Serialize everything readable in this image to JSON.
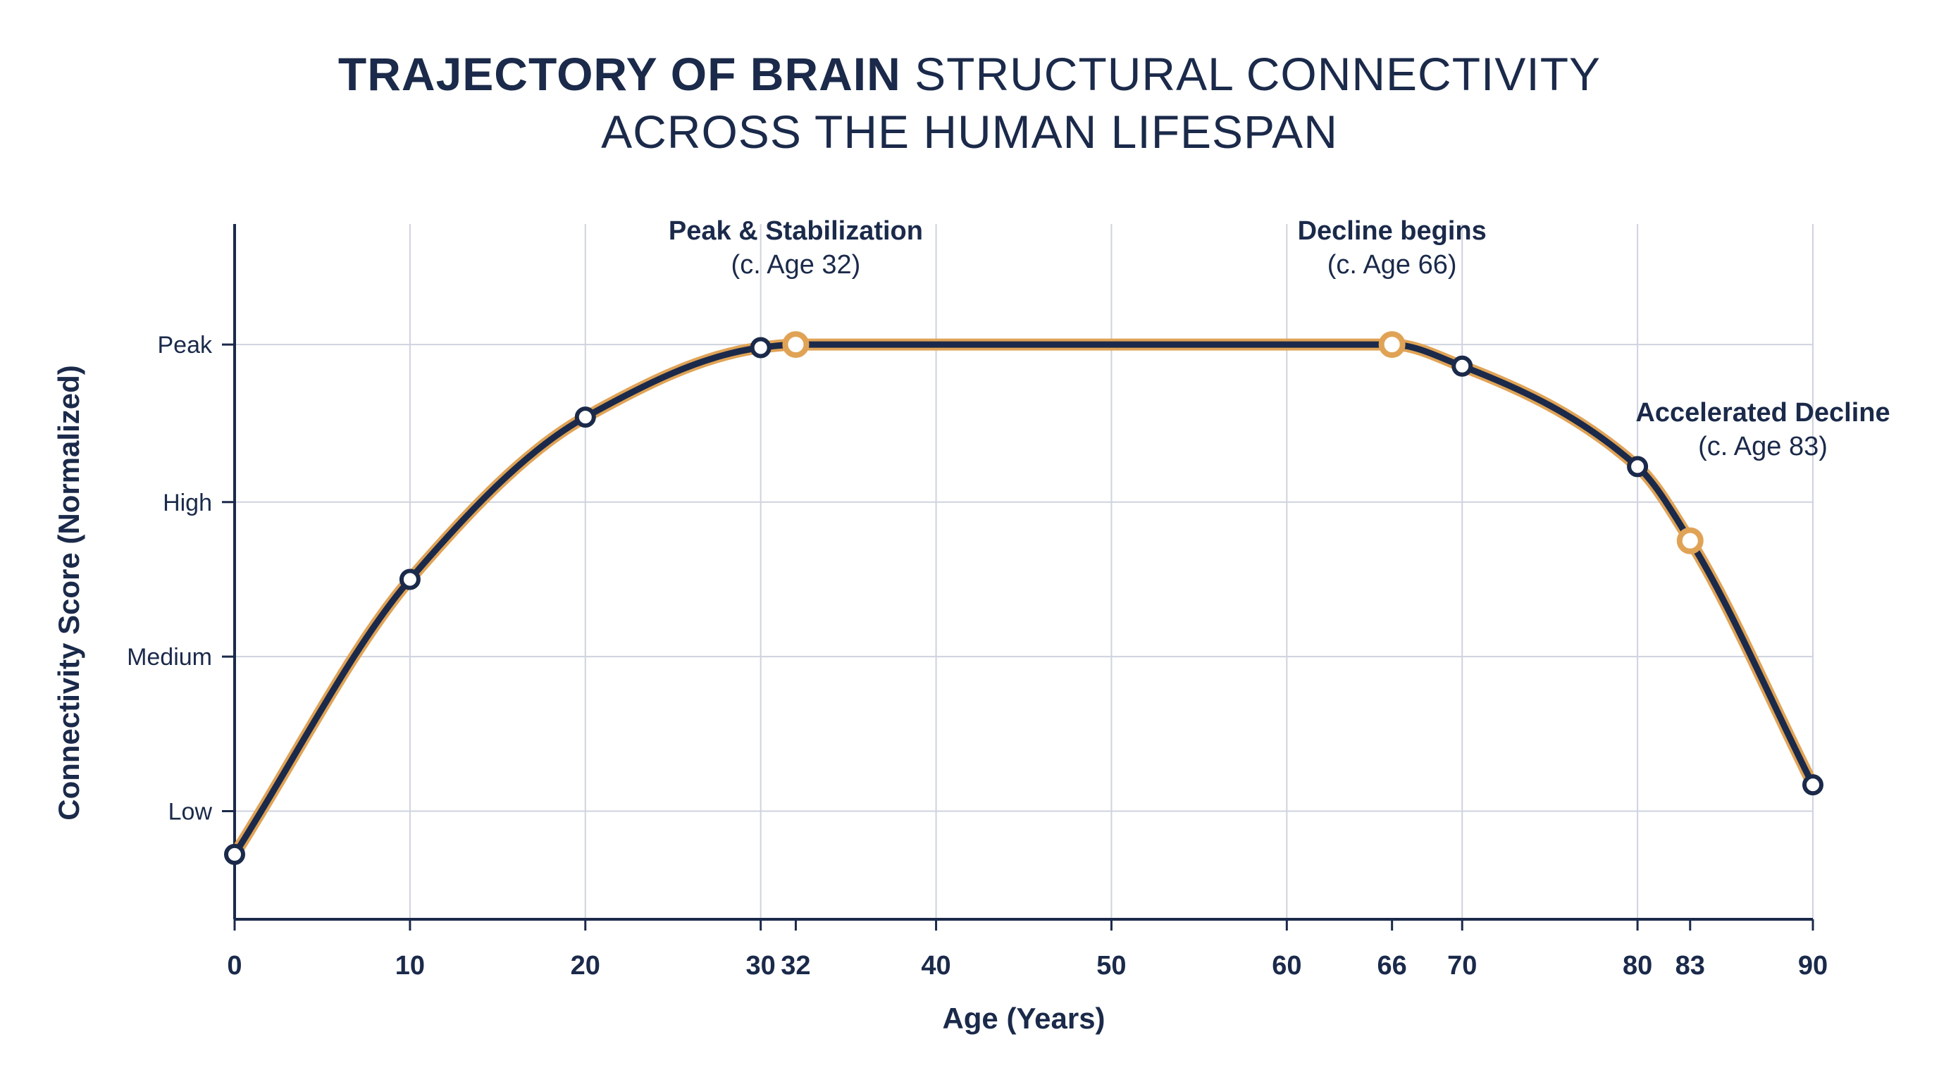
{
  "chart_data": {
    "type": "line",
    "title": {
      "line1_bold": "TRAJECTORY OF BRAIN",
      "line1_rest": " STRUCTURAL CONNECTIVITY",
      "line2": "ACROSS THE HUMAN LIFESPAN"
    },
    "xlabel": "Age (Years)",
    "ylabel": "Connectivity Score (Normalized)",
    "xlim": [
      0,
      90
    ],
    "ylim": [
      0,
      4.5
    ],
    "x_ticks": [
      0,
      10,
      20,
      30,
      32,
      40,
      50,
      60,
      66,
      70,
      80,
      83,
      90
    ],
    "x_grid": [
      0,
      10,
      20,
      30,
      40,
      50,
      60,
      70,
      80,
      90
    ],
    "y_ticks": [
      {
        "value": 0.7,
        "label": "Low"
      },
      {
        "value": 1.7,
        "label": "Medium"
      },
      {
        "value": 2.7,
        "label": "High"
      },
      {
        "value": 3.72,
        "label": "Peak"
      }
    ],
    "grid": true,
    "series": [
      {
        "color": "#1b2a4a",
        "outline_color": "#e0a356",
        "x": [
          0,
          10,
          20,
          30,
          32,
          66,
          70,
          80,
          83,
          90
        ],
        "y": [
          0.42,
          2.2,
          3.25,
          3.7,
          3.72,
          3.72,
          3.58,
          2.93,
          2.45,
          0.87
        ]
      }
    ],
    "markers": [
      {
        "x": 0,
        "y": 0.42,
        "style": "navy"
      },
      {
        "x": 10,
        "y": 2.2,
        "style": "navy"
      },
      {
        "x": 20,
        "y": 3.25,
        "style": "navy"
      },
      {
        "x": 30,
        "y": 3.7,
        "style": "navy"
      },
      {
        "x": 32,
        "y": 3.72,
        "style": "gold"
      },
      {
        "x": 66,
        "y": 3.72,
        "style": "gold"
      },
      {
        "x": 70,
        "y": 3.58,
        "style": "navy"
      },
      {
        "x": 80,
        "y": 2.93,
        "style": "navy"
      },
      {
        "x": 83,
        "y": 2.45,
        "style": "gold"
      },
      {
        "x": 90,
        "y": 0.87,
        "style": "navy"
      }
    ],
    "annotations": [
      {
        "x": 32,
        "anchor": "above",
        "lines": [
          "Peak & Stabilization",
          "(c. Age 32)"
        ]
      },
      {
        "x": 66,
        "anchor": "above",
        "lines": [
          "Decline begins",
          "(c. Age 66)"
        ]
      },
      {
        "x": 83,
        "anchor": "right",
        "lines": [
          "Accelerated Decline",
          "(c. Age 83)"
        ]
      }
    ],
    "colors": {
      "line": "#1b2a4a",
      "accent": "#e0a356",
      "grid": "#cfd3de",
      "text": "#1b2a4a"
    }
  }
}
